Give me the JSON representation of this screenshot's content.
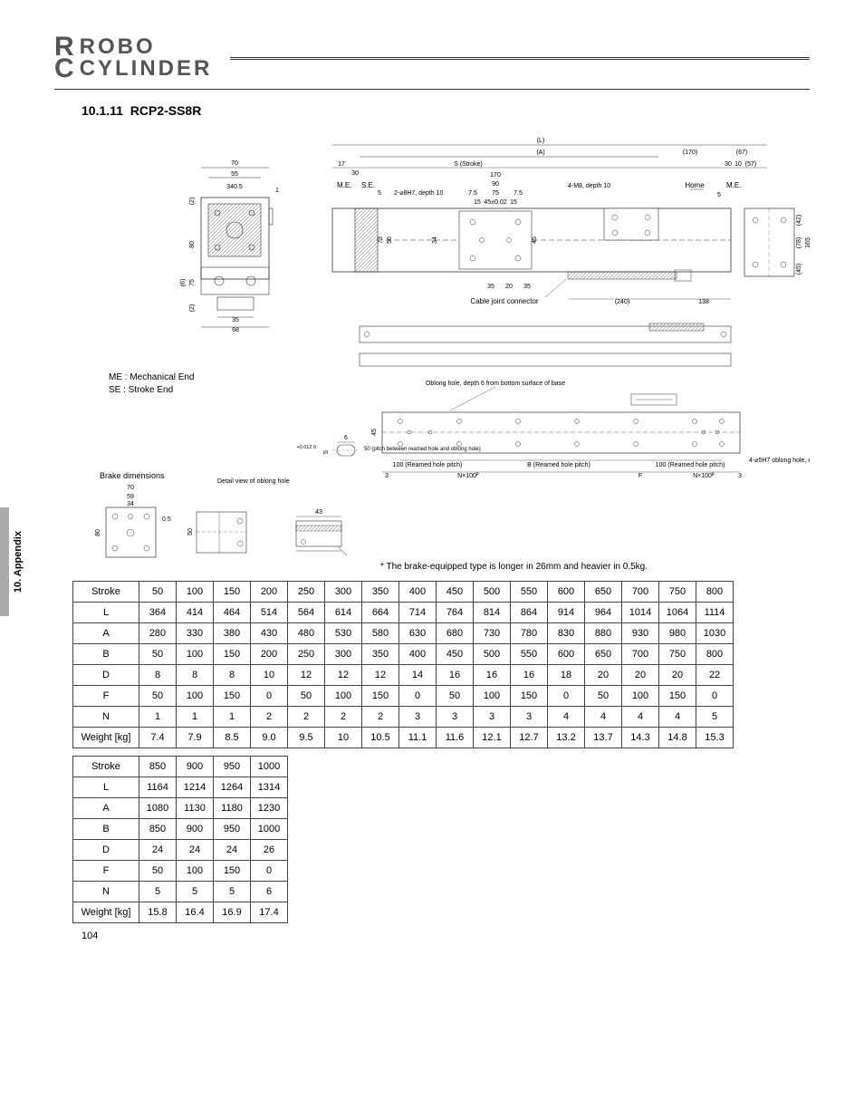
{
  "logo": {
    "line1": "ROBO",
    "line2": "CYLINDER"
  },
  "sidebar": {
    "label": "10. Appendix"
  },
  "section": {
    "number": "10.1.11",
    "title": "RCP2-SS8R"
  },
  "legend": {
    "me": "ME : Mechanical End",
    "se": "SE : Stroke End"
  },
  "labels": {
    "brake_dimensions": "Brake dimensions",
    "detail_oblong": "Detail view of oblong hole",
    "brake_note": "* The brake-equipped type is longer in 26mm and heavier in 0.5kg.",
    "cable_joint": "Cable joint connector",
    "oblong_hole": "Oblong hole, depth 6 from bottom surface of base",
    "pitch_note": "50 (pitch between reamed hole and oblong hole)",
    "reamed_100_a": "100 (Reamed hole pitch)",
    "reamed_b": "B (Reamed hole pitch)",
    "reamed_100_b": "100 (Reamed hole pitch)",
    "oblong_right": "4-⌀5H7 oblong hole, depth 6 from bottom surface of base\nD-M8 depth 10",
    "s_stroke": "S (Stroke)",
    "home": "Home",
    "me_abbr": "M.E.",
    "se_abbr": "S.E.",
    "m8": "4-M8, depth 10",
    "h7": "2-⌀8H7, depth 10",
    "nx100": "N×100ᴾ",
    "f": "F",
    "L": "(L)",
    "A": "(A)"
  },
  "dims": {
    "left_block": {
      "w70": "70",
      "w55": "55",
      "w340_5": "340.5",
      "w35": "35",
      "w68": "68",
      "h80": "80",
      "h75": "75",
      "t1": "1",
      "p2a": "(2)",
      "p2b": "(2)",
      "p6": "(6)"
    },
    "top": {
      "d17": "17",
      "d30": "30",
      "d170a": "170",
      "d90": "90",
      "d75": "75",
      "d45": "45±0.02",
      "d7_5a": "7.5",
      "d7_5b": "7.5",
      "d15a": "15",
      "d15b": "15",
      "d5a": "5",
      "d5b": "5",
      "d170b": "(170)",
      "d30b": "30",
      "d10": "10",
      "d57": "(57)",
      "d67": "(67)",
      "d240": "(240)",
      "d138": "138",
      "d35a": "35",
      "d20": "20",
      "d35b": "35",
      "d73": "73",
      "d56": "56",
      "d34": "34",
      "d45r": "45",
      "d42": "(42)",
      "d78": "(78)",
      "d165": "165",
      "d45b": "(45)"
    },
    "bottom": {
      "d6": "6",
      "d5": "5",
      "tol": "+0.012\n 0",
      "d45": "45",
      "d3": "3"
    },
    "brake": {
      "d70": "70",
      "d59": "59",
      "d34": "34",
      "d0_5": "0.5",
      "d80": "80",
      "d50": "50",
      "d43": "43"
    }
  },
  "table1": {
    "headers": [
      "Stroke",
      "50",
      "100",
      "150",
      "200",
      "250",
      "300",
      "350",
      "400",
      "450",
      "500",
      "550",
      "600",
      "650",
      "700",
      "750",
      "800"
    ],
    "rows": [
      [
        "L",
        "364",
        "414",
        "464",
        "514",
        "564",
        "614",
        "664",
        "714",
        "764",
        "814",
        "864",
        "914",
        "964",
        "1014",
        "1064",
        "1114"
      ],
      [
        "A",
        "280",
        "330",
        "380",
        "430",
        "480",
        "530",
        "580",
        "630",
        "680",
        "730",
        "780",
        "830",
        "880",
        "930",
        "980",
        "1030"
      ],
      [
        "B",
        "50",
        "100",
        "150",
        "200",
        "250",
        "300",
        "350",
        "400",
        "450",
        "500",
        "550",
        "600",
        "650",
        "700",
        "750",
        "800"
      ],
      [
        "D",
        "8",
        "8",
        "8",
        "10",
        "12",
        "12",
        "12",
        "14",
        "16",
        "16",
        "16",
        "18",
        "20",
        "20",
        "20",
        "22"
      ],
      [
        "F",
        "50",
        "100",
        "150",
        "0",
        "50",
        "100",
        "150",
        "0",
        "50",
        "100",
        "150",
        "0",
        "50",
        "100",
        "150",
        "0"
      ],
      [
        "N",
        "1",
        "1",
        "1",
        "2",
        "2",
        "2",
        "2",
        "3",
        "3",
        "3",
        "3",
        "4",
        "4",
        "4",
        "4",
        "5"
      ],
      [
        "Weight [kg]",
        "7.4",
        "7.9",
        "8.5",
        "9.0",
        "9.5",
        "10",
        "10.5",
        "11.1",
        "11.6",
        "12.1",
        "12.7",
        "13.2",
        "13.7",
        "14.3",
        "14.8",
        "15.3"
      ]
    ]
  },
  "table2": {
    "headers": [
      "Stroke",
      "850",
      "900",
      "950",
      "1000"
    ],
    "rows": [
      [
        "L",
        "1164",
        "1214",
        "1264",
        "1314"
      ],
      [
        "A",
        "1080",
        "1130",
        "1180",
        "1230"
      ],
      [
        "B",
        "850",
        "900",
        "950",
        "1000"
      ],
      [
        "D",
        "24",
        "24",
        "24",
        "26"
      ],
      [
        "F",
        "50",
        "100",
        "150",
        "0"
      ],
      [
        "N",
        "5",
        "5",
        "5",
        "6"
      ],
      [
        "Weight [kg]",
        "15.8",
        "16.4",
        "16.9",
        "17.4"
      ]
    ]
  },
  "page_number": "104"
}
